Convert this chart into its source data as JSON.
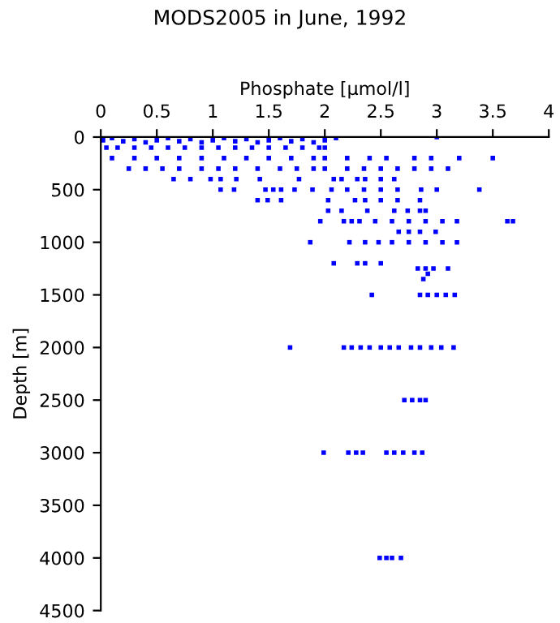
{
  "chart_data": {
    "type": "scatter",
    "title": "MODS2005 in June, 1992",
    "xlabel": "Phosphate [μmol/l]",
    "ylabel": "Depth [m]",
    "xlim": [
      0,
      4
    ],
    "xticks": [
      0,
      0.5,
      1,
      1.5,
      2,
      2.5,
      3,
      3.5,
      4
    ],
    "ylim": [
      4500,
      0
    ],
    "yticks": [
      0,
      500,
      1000,
      1500,
      2000,
      2500,
      3000,
      3500,
      4000,
      4500
    ],
    "grid": false,
    "marker": "square",
    "series": [
      {
        "color": "#0000ff",
        "x": [
          0.02,
          0.1,
          0.2,
          0.3,
          0.4,
          0.5,
          0.6,
          0.7,
          0.8,
          0.9,
          1.0,
          1.1,
          1.2,
          1.3,
          1.4,
          1.5,
          1.6,
          1.7,
          1.8,
          1.9,
          2.0,
          2.1,
          3.0,
          0.05,
          0.15,
          0.3,
          0.45,
          0.6,
          0.75,
          0.9,
          1.05,
          1.2,
          1.35,
          1.5,
          1.65,
          1.8,
          1.95,
          2.0,
          0.1,
          0.3,
          0.5,
          0.7,
          0.9,
          1.1,
          1.3,
          1.5,
          1.7,
          1.9,
          2.0,
          2.2,
          2.4,
          2.55,
          2.8,
          2.95,
          3.2,
          3.5,
          0.25,
          0.4,
          0.55,
          0.7,
          0.9,
          1.05,
          1.2,
          1.4,
          1.6,
          1.75,
          1.9,
          2.0,
          2.2,
          2.35,
          2.5,
          2.65,
          2.8,
          2.95,
          3.1,
          0.65,
          0.8,
          0.98,
          1.07,
          1.21,
          1.42,
          1.77,
          2.08,
          2.15,
          2.29,
          2.36,
          2.5,
          2.62,
          1.07,
          1.19,
          1.47,
          1.54,
          1.61,
          1.73,
          1.89,
          2.06,
          2.2,
          2.35,
          2.5,
          2.65,
          2.86,
          3.0,
          3.38,
          1.4,
          1.49,
          1.61,
          2.03,
          2.27,
          2.36,
          2.5,
          2.65,
          2.85,
          2.03,
          2.15,
          2.38,
          2.62,
          2.74,
          2.85,
          2.9,
          1.96,
          2.17,
          2.24,
          2.31,
          2.45,
          2.6,
          2.75,
          2.9,
          3.05,
          3.18,
          3.63,
          3.68,
          2.66,
          2.75,
          2.85,
          2.99,
          1.87,
          2.22,
          2.36,
          2.48,
          2.6,
          2.75,
          2.9,
          3.05,
          3.18,
          2.08,
          2.29,
          2.36,
          2.5,
          2.83,
          2.9,
          2.97,
          3.1,
          2.92,
          2.88,
          2.42,
          2.85,
          2.92,
          3.0,
          3.08,
          3.16,
          1.69,
          2.17,
          2.24,
          2.32,
          2.4,
          2.5,
          2.58,
          2.66,
          2.77,
          2.85,
          2.95,
          3.04,
          3.15,
          2.71,
          2.78,
          2.85,
          2.9,
          1.99,
          2.21,
          2.28,
          2.34,
          2.55,
          2.62,
          2.7,
          2.8,
          2.87,
          2.49,
          2.55,
          2.6,
          2.68
        ],
        "values": [
          30,
          10,
          40,
          20,
          50,
          30,
          10,
          40,
          20,
          50,
          30,
          10,
          40,
          20,
          50,
          30,
          10,
          40,
          20,
          50,
          30,
          10,
          0,
          100,
          100,
          100,
          100,
          100,
          100,
          100,
          100,
          100,
          100,
          100,
          100,
          100,
          100,
          100,
          200,
          200,
          200,
          200,
          200,
          200,
          200,
          200,
          200,
          200,
          200,
          200,
          200,
          200,
          200,
          200,
          200,
          200,
          300,
          300,
          300,
          300,
          300,
          300,
          300,
          300,
          300,
          300,
          300,
          300,
          300,
          300,
          300,
          300,
          300,
          300,
          300,
          400,
          400,
          400,
          400,
          400,
          400,
          400,
          400,
          400,
          400,
          400,
          400,
          400,
          500,
          500,
          500,
          500,
          500,
          500,
          500,
          500,
          500,
          500,
          500,
          500,
          500,
          500,
          500,
          600,
          600,
          600,
          600,
          600,
          600,
          600,
          600,
          600,
          700,
          700,
          700,
          700,
          700,
          700,
          700,
          800,
          800,
          800,
          800,
          800,
          800,
          800,
          800,
          800,
          800,
          800,
          800,
          900,
          900,
          900,
          900,
          1000,
          1000,
          1000,
          1000,
          1000,
          1000,
          1000,
          1000,
          1000,
          1200,
          1200,
          1200,
          1200,
          1250,
          1250,
          1250,
          1250,
          1300,
          1350,
          1500,
          1500,
          1500,
          1500,
          1500,
          1500,
          2000,
          2000,
          2000,
          2000,
          2000,
          2000,
          2000,
          2000,
          2000,
          2000,
          2000,
          2000,
          2000,
          2500,
          2500,
          2500,
          2500,
          3000,
          3000,
          3000,
          3000,
          3000,
          3000,
          3000,
          3000,
          3000,
          4000,
          4000,
          4000,
          4000
        ]
      }
    ]
  }
}
